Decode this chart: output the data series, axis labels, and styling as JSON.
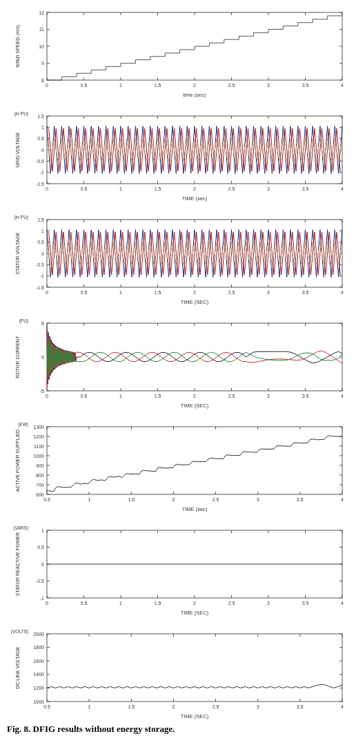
{
  "chart_data": [
    {
      "type": "step",
      "xlabel": "time  (sec)",
      "ylabel": "WIND SPEED (m/s)",
      "xlim": [
        0,
        4
      ],
      "ylim": [
        8,
        12
      ],
      "xticks": [
        0,
        0.5,
        1,
        1.5,
        2,
        2.5,
        3,
        3.5,
        4
      ],
      "yticks": [
        8,
        9,
        10,
        11,
        12
      ],
      "x": [
        0,
        0.2,
        0.4,
        0.6,
        0.8,
        1,
        1.2,
        1.4,
        1.6,
        1.8,
        2,
        2.2,
        2.4,
        2.6,
        2.8,
        3,
        3.2,
        3.4,
        3.6,
        3.8,
        4
      ],
      "series": [
        {
          "color": "#555555",
          "values": [
            8,
            8.2,
            8.4,
            8.6,
            8.8,
            9,
            9.2,
            9.4,
            9.6,
            9.8,
            10,
            10.2,
            10.4,
            10.6,
            10.8,
            11,
            11.2,
            11.4,
            11.6,
            11.8,
            11.8
          ]
        }
      ]
    },
    {
      "type": "line",
      "xlabel": "TIME  (sec)",
      "ylabel": "GRID VOLTAGE",
      "annotations": [
        "(in PU)"
      ],
      "xlim": [
        0,
        4
      ],
      "ylim": [
        -1.5,
        1.5
      ],
      "xticks": [
        0,
        0.5,
        1,
        1.5,
        2,
        2.5,
        3,
        3.5,
        4
      ],
      "yticks": [
        -1.5,
        -1,
        -0.5,
        0,
        0.5,
        1,
        1.5
      ],
      "x": [
        0,
        0.05,
        0.1,
        0.15,
        0.2,
        0.25,
        0.3,
        0.35,
        0.4,
        0.45,
        0.5,
        0.55,
        0.6,
        0.65,
        0.7,
        0.75,
        0.8,
        0.85,
        0.9,
        0.95,
        1,
        1.05,
        1.1,
        1.15,
        1.2,
        1.25,
        1.3,
        1.35,
        1.4,
        1.45,
        1.5,
        1.55,
        1.6,
        1.65,
        1.7,
        1.75,
        1.8,
        1.85,
        1.9,
        1.95,
        2,
        2.05,
        2.1,
        2.15,
        2.2,
        2.25,
        2.3,
        2.35,
        2.4,
        2.45,
        2.5,
        2.55,
        2.6,
        2.65,
        2.7,
        2.75,
        2.8,
        2.85,
        2.9,
        2.95,
        3,
        3.05,
        3.1,
        3.15,
        3.2,
        3.25,
        3.3,
        3.35,
        3.4,
        3.45,
        3.5,
        3.55,
        3.6,
        3.65,
        3.7,
        3.75,
        3.8,
        3.85,
        3.9,
        3.95,
        4
      ],
      "series": [
        {
          "color": "#2b2a7a",
          "values": [
            1.05,
            -1.05,
            1.05,
            -1.05,
            1.05,
            -1.05,
            1.05,
            -1.05,
            1.05,
            -1.05,
            1.05,
            -1.05,
            1.05,
            -1.05,
            1.05,
            -1.05,
            1.05,
            -1.05,
            1.05,
            -1.05,
            1.05,
            -1.05,
            1.05,
            -1.05,
            1.05,
            -1.05,
            1.05,
            -1.05,
            1.05,
            -1.05,
            1.05,
            -1.05,
            1.05,
            -1.05,
            1.05,
            -1.05,
            1.05,
            -1.05,
            1.05,
            -1.05,
            1.05,
            -1.05,
            1.05,
            -1.05,
            1.05,
            -1.05,
            1.05,
            -1.05,
            1.05,
            -1.05,
            1.05,
            -1.05,
            1.05,
            -1.05,
            1.05,
            -1.05,
            1.05,
            -1.05,
            1.05,
            -1.05,
            1.05,
            -1.05,
            1.05,
            -1.05,
            1.05,
            -1.05,
            1.05,
            -1.05,
            1.05,
            -1.05,
            1.05,
            -1.05,
            1.05,
            -1.05,
            1.05,
            -1.05,
            1.05,
            -1.05,
            1.05,
            -1.05,
            1.05
          ]
        },
        {
          "color": "#a51d1d",
          "x": [
            0.025,
            0.075,
            0.125,
            0.175,
            0.225,
            0.275,
            0.325,
            0.375,
            0.425,
            0.475,
            0.525,
            0.575,
            0.625,
            0.675,
            0.725,
            0.775,
            0.825,
            0.875,
            0.925,
            0.975,
            1.025,
            1.075,
            1.125,
            1.175,
            1.225,
            1.275,
            1.325,
            1.375,
            1.425,
            1.475,
            1.525,
            1.575,
            1.625,
            1.675,
            1.725,
            1.775,
            1.825,
            1.875,
            1.925,
            1.975,
            2.025,
            2.075,
            2.125,
            2.175,
            2.225,
            2.275,
            2.325,
            2.375,
            2.425,
            2.475,
            2.525,
            2.575,
            2.625,
            2.675,
            2.725,
            2.775,
            2.825,
            2.875,
            2.925,
            2.975,
            3.025,
            3.075,
            3.125,
            3.175,
            3.225,
            3.275,
            3.325,
            3.375,
            3.425,
            3.475,
            3.525,
            3.575,
            3.625,
            3.675,
            3.725,
            3.775,
            3.825,
            3.875,
            3.925,
            3.975
          ],
          "values": [
            0.95,
            -0.95,
            0.95,
            -0.95,
            0.95,
            -0.95,
            0.95,
            -0.95,
            0.95,
            -0.95,
            0.95,
            -0.95,
            0.95,
            -0.95,
            0.95,
            -0.95,
            0.95,
            -0.95,
            0.95,
            -0.95,
            0.95,
            -0.95,
            0.95,
            -0.95,
            0.95,
            -0.95,
            0.95,
            -0.95,
            0.95,
            -0.95,
            0.95,
            -0.95,
            0.95,
            -0.95,
            0.95,
            -0.95,
            0.95,
            -0.95,
            0.95,
            -0.95,
            0.95,
            -0.95,
            0.95,
            -0.95,
            0.95,
            -0.95,
            0.95,
            -0.95,
            0.95,
            -0.95,
            0.95,
            -0.95,
            0.95,
            -0.95,
            0.95,
            -0.95,
            0.95,
            -0.95,
            0.95,
            -0.95,
            0.95,
            -0.95,
            0.95,
            -0.95,
            0.95,
            -0.95,
            0.95,
            -0.95,
            0.95,
            -0.95,
            0.95,
            -0.95,
            0.95,
            -0.95,
            0.95,
            -0.95,
            0.95,
            -0.95,
            0.95,
            -0.95
          ]
        },
        {
          "color": "#d6a06a",
          "values": [
            0.5,
            -0.5,
            0.5,
            -0.5,
            0.5,
            -0.5,
            0.5,
            -0.5,
            0.5,
            -0.5,
            0.5,
            -0.5,
            0.5,
            -0.5,
            0.5,
            -0.5,
            0.5,
            -0.5,
            0.5,
            -0.5,
            0.5,
            -0.5,
            0.5,
            -0.5,
            0.5,
            -0.5,
            0.5,
            -0.5,
            0.5,
            -0.5,
            0.5,
            -0.5,
            0.5,
            -0.5,
            0.5,
            -0.5,
            0.5,
            -0.5,
            0.5,
            -0.5,
            0.5,
            -0.5,
            0.5,
            -0.5,
            0.5,
            -0.5,
            0.5,
            -0.5,
            0.5,
            -0.5,
            0.5,
            -0.5,
            0.5,
            -0.5,
            0.5,
            -0.5,
            0.5,
            -0.5,
            0.5,
            -0.5,
            0.5,
            -0.5,
            0.5,
            -0.5,
            0.5,
            -0.5,
            0.5,
            -0.5,
            0.5,
            -0.5,
            0.5,
            -0.5,
            0.5,
            -0.5,
            0.5,
            -0.5,
            0.5,
            -0.5,
            0.5,
            -0.5,
            0.5
          ]
        }
      ]
    },
    {
      "type": "line",
      "xlabel": "TIME    (SEC)",
      "ylabel": "STATOR VOLTAGE",
      "annotations": [
        "(in PU)"
      ],
      "xlim": [
        0,
        4
      ],
      "ylim": [
        -1.5,
        1.5
      ],
      "xticks": [
        0,
        0.5,
        1,
        1.5,
        2,
        2.5,
        3,
        3.5,
        4
      ],
      "yticks": [
        -1.5,
        -1,
        -0.5,
        0,
        0.5,
        1,
        1.5
      ],
      "x": [
        0,
        0.05,
        0.1,
        0.15,
        0.2,
        0.25,
        0.3,
        0.35,
        0.4,
        0.45,
        0.5,
        0.55,
        0.6,
        0.65,
        0.7,
        0.75,
        0.8,
        0.85,
        0.9,
        0.95,
        1,
        1.05,
        1.1,
        1.15,
        1.2,
        1.25,
        1.3,
        1.35,
        1.4,
        1.45,
        1.5,
        1.55,
        1.6,
        1.65,
        1.7,
        1.75,
        1.8,
        1.85,
        1.9,
        1.95,
        2,
        2.05,
        2.1,
        2.15,
        2.2,
        2.25,
        2.3,
        2.35,
        2.4,
        2.45,
        2.5,
        2.55,
        2.6,
        2.65,
        2.7,
        2.75,
        2.8,
        2.85,
        2.9,
        2.95,
        3,
        3.05,
        3.1,
        3.15,
        3.2,
        3.25,
        3.3,
        3.35,
        3.4,
        3.45,
        3.5,
        3.55,
        3.6,
        3.65,
        3.7,
        3.75,
        3.8,
        3.85,
        3.9,
        3.95,
        4
      ],
      "series": [
        {
          "color": "#2b2a7a",
          "values": [
            1.05,
            -1.05,
            1.05,
            -1.05,
            1.05,
            -1.05,
            1.05,
            -1.05,
            1.05,
            -1.05,
            1.05,
            -1.05,
            1.05,
            -1.05,
            1.05,
            -1.05,
            1.05,
            -1.05,
            1.05,
            -1.05,
            1.05,
            -1.05,
            1.05,
            -1.05,
            1.05,
            -1.05,
            1.05,
            -1.05,
            1.05,
            -1.05,
            1.05,
            -1.05,
            1.05,
            -1.05,
            1.05,
            -1.05,
            1.05,
            -1.05,
            1.05,
            -1.05,
            1.05,
            -1.05,
            1.05,
            -1.05,
            1.05,
            -1.05,
            1.05,
            -1.05,
            1.05,
            -1.05,
            1.05,
            -1.05,
            1.05,
            -1.05,
            1.05,
            -1.05,
            1.05,
            -1.05,
            1.05,
            -1.05,
            1.05,
            -1.05,
            1.05,
            -1.05,
            1.05,
            -1.05,
            1.05,
            -1.05,
            1.05,
            -1.05,
            1.05,
            -1.05,
            1.05,
            -1.05,
            1.05,
            -1.05,
            1.05,
            -1.05,
            1.05,
            -1.05,
            1.05
          ]
        },
        {
          "color": "#a51d1d",
          "x": [
            0.025,
            0.075,
            0.125,
            0.175,
            0.225,
            0.275,
            0.325,
            0.375,
            0.425,
            0.475,
            0.525,
            0.575,
            0.625,
            0.675,
            0.725,
            0.775,
            0.825,
            0.875,
            0.925,
            0.975,
            1.025,
            1.075,
            1.125,
            1.175,
            1.225,
            1.275,
            1.325,
            1.375,
            1.425,
            1.475,
            1.525,
            1.575,
            1.625,
            1.675,
            1.725,
            1.775,
            1.825,
            1.875,
            1.925,
            1.975,
            2.025,
            2.075,
            2.125,
            2.175,
            2.225,
            2.275,
            2.325,
            2.375,
            2.425,
            2.475,
            2.525,
            2.575,
            2.625,
            2.675,
            2.725,
            2.775,
            2.825,
            2.875,
            2.925,
            2.975,
            3.025,
            3.075,
            3.125,
            3.175,
            3.225,
            3.275,
            3.325,
            3.375,
            3.425,
            3.475,
            3.525,
            3.575,
            3.625,
            3.675,
            3.725,
            3.775,
            3.825,
            3.875,
            3.925,
            3.975
          ],
          "values": [
            0.95,
            -0.95,
            0.95,
            -0.95,
            0.95,
            -0.95,
            0.95,
            -0.95,
            0.95,
            -0.95,
            0.95,
            -0.95,
            0.95,
            -0.95,
            0.95,
            -0.95,
            0.95,
            -0.95,
            0.95,
            -0.95,
            0.95,
            -0.95,
            0.95,
            -0.95,
            0.95,
            -0.95,
            0.95,
            -0.95,
            0.95,
            -0.95,
            0.95,
            -0.95,
            0.95,
            -0.95,
            0.95,
            -0.95,
            0.95,
            -0.95,
            0.95,
            -0.95,
            0.95,
            -0.95,
            0.95,
            -0.95,
            0.95,
            -0.95,
            0.95,
            -0.95,
            0.95,
            -0.95,
            0.95,
            -0.95,
            0.95,
            -0.95,
            0.95,
            -0.95,
            0.95,
            -0.95,
            0.95,
            -0.95,
            0.95,
            -0.95,
            0.95,
            -0.95,
            0.95,
            -0.95,
            0.95,
            -0.95,
            0.95,
            -0.95,
            0.95,
            -0.95,
            0.95,
            -0.95,
            0.95,
            -0.95,
            0.95,
            -0.95,
            0.95,
            -0.95
          ]
        },
        {
          "color": "#d6a06a",
          "values": [
            0.5,
            -0.5,
            0.5,
            -0.5,
            0.5,
            -0.5,
            0.5,
            -0.5,
            0.5,
            -0.5,
            0.5,
            -0.5,
            0.5,
            -0.5,
            0.5,
            -0.5,
            0.5,
            -0.5,
            0.5,
            -0.5,
            0.5,
            -0.5,
            0.5,
            -0.5,
            0.5,
            -0.5,
            0.5,
            -0.5,
            0.5,
            -0.5,
            0.5,
            -0.5,
            0.5,
            -0.5,
            0.5,
            -0.5,
            0.5,
            -0.5,
            0.5,
            -0.5,
            0.5,
            -0.5,
            0.5,
            -0.5,
            0.5,
            -0.5,
            0.5,
            -0.5,
            0.5,
            -0.5,
            0.5,
            -0.5,
            0.5,
            -0.5,
            0.5,
            -0.5,
            0.5,
            -0.5,
            0.5,
            -0.5,
            0.5,
            -0.5,
            0.5,
            -0.5,
            0.5,
            -0.5,
            0.5,
            -0.5,
            0.5,
            -0.5,
            0.5,
            -0.5,
            0.5,
            -0.5,
            0.5,
            -0.5,
            0.5,
            -0.5,
            0.5,
            -0.5,
            0.5
          ]
        }
      ]
    },
    {
      "type": "line",
      "xlabel": "TIME  (SEC)",
      "ylabel": "ROTOR CURRENT",
      "annotations": [
        "(PU)"
      ],
      "xlim": [
        0,
        4
      ],
      "ylim": [
        -5,
        5
      ],
      "xticks": [
        0,
        0.5,
        1,
        1.5,
        2,
        2.5,
        3,
        3.5,
        4
      ],
      "yticks": [
        -5,
        0,
        5
      ],
      "x": [
        0,
        0.01,
        0.02,
        0.03,
        0.04,
        0.05,
        0.06,
        0.07,
        0.08,
        0.09,
        0.1,
        0.11,
        0.12,
        0.13,
        0.14,
        0.15,
        0.16,
        0.17,
        0.18,
        0.19,
        0.2,
        0.21,
        0.22,
        0.23,
        0.24,
        0.25,
        0.26,
        0.27,
        0.28,
        0.29,
        0.3,
        0.31,
        0.32,
        0.33,
        0.34,
        0.35,
        0.36,
        0.37,
        0.38,
        0.39,
        0.4,
        0.45,
        0.5,
        0.55,
        0.6,
        0.65,
        0.7,
        0.75,
        0.8,
        0.85,
        0.9,
        0.95,
        1,
        1.05,
        1.1,
        1.15,
        1.2,
        1.25,
        1.3,
        1.35,
        1.4,
        1.45,
        1.5,
        1.55,
        1.6,
        1.65,
        1.7,
        1.75,
        1.8,
        1.85,
        1.9,
        1.95,
        2,
        2.05,
        2.1,
        2.15,
        2.2,
        2.25,
        2.3,
        2.35,
        2.4,
        2.45,
        2.5,
        2.55,
        2.6,
        2.65,
        2.7,
        2.75,
        2.8,
        2.85,
        2.9,
        2.95,
        3,
        3.05,
        3.1,
        3.15,
        3.2,
        3.25,
        3.3,
        3.35,
        3.4,
        3.45,
        3.5,
        3.55,
        3.6,
        3.65,
        3.7,
        3.75,
        3.8,
        3.85,
        3.9,
        3.95,
        4
      ],
      "series": [
        {
          "color": "#1f1f3a",
          "values": [
            4.5,
            -4,
            3.6,
            -3.3,
            3,
            -2.7,
            2.5,
            -2.3,
            2.1,
            -2,
            1.9,
            -1.8,
            1.7,
            -1.6,
            1.5,
            -1.4,
            1.4,
            -1.3,
            1.3,
            -1.2,
            1.2,
            -1.1,
            1.1,
            -1.1,
            1,
            -1,
            1,
            -0.9,
            0.9,
            -0.9,
            0.9,
            -0.8,
            0.8,
            -0.8,
            0.8,
            -0.8,
            0.7,
            -0.7,
            0.7,
            -0.7,
            0,
            0,
            0.41,
            0.67,
            0.67,
            0.41,
            0,
            -0.41,
            -0.67,
            -0.67,
            -0.41,
            0,
            0.41,
            0.67,
            0.67,
            0.41,
            0,
            -0.41,
            -0.67,
            -0.67,
            -0.41,
            0,
            0.41,
            0.67,
            0.67,
            0.41,
            0,
            -0.41,
            -0.67,
            -0.67,
            -0.41,
            0,
            0.41,
            0.67,
            0.67,
            0.41,
            0,
            -0.41,
            -0.67,
            -0.67,
            -0.41,
            0,
            0.41,
            0.67,
            0.67,
            0.41,
            0,
            0.4,
            0.7,
            0.8,
            0.8,
            0.8,
            0.8,
            0.8,
            0.8,
            0.8,
            0.8,
            0.8,
            0.7,
            0.5,
            0.2,
            -0.1,
            -0.4,
            -0.7,
            -0.9,
            -0.8,
            -0.6,
            -0.3,
            0,
            0.3,
            0.6,
            0.8,
            0.5
          ]
        },
        {
          "color": "#c0303a",
          "values": [
            -4.5,
            3.8,
            -3.4,
            3.1,
            -2.8,
            2.6,
            -2.4,
            2.2,
            -2,
            1.9,
            -1.8,
            1.7,
            -1.6,
            1.5,
            -1.4,
            1.4,
            -1.3,
            1.3,
            -1.2,
            1.2,
            -1.1,
            1.1,
            -1,
            1,
            -1,
            0.9,
            -0.9,
            0.9,
            -0.8,
            0.8,
            -0.8,
            0.8,
            -0.7,
            0.7,
            -0.7,
            0.7,
            -0.6,
            0.6,
            -0.5,
            0.6,
            0.7,
            0.67,
            0.41,
            0,
            -0.41,
            -0.67,
            -0.67,
            -0.41,
            0,
            0.41,
            0.67,
            0.67,
            0.41,
            0,
            -0.41,
            -0.67,
            -0.67,
            -0.41,
            0,
            0.41,
            0.67,
            0.67,
            0.41,
            0,
            -0.41,
            -0.67,
            -0.67,
            -0.41,
            0,
            0.41,
            0.67,
            0.67,
            0.41,
            0,
            -0.41,
            -0.67,
            -0.67,
            -0.41,
            0,
            0.41,
            0.67,
            0.67,
            0.41,
            0,
            -0.41,
            -0.67,
            -0.67,
            -0.8,
            -0.8,
            -0.7,
            -0.6,
            -0.5,
            -0.4,
            -0.35,
            -0.3,
            -0.3,
            -0.3,
            -0.35,
            -0.4,
            -0.45,
            -0.5,
            -0.4,
            -0.2,
            0.1,
            0.4,
            0.7,
            0.9,
            0.8,
            0.5,
            0.2,
            -0.2,
            -0.6,
            -0.9
          ]
        },
        {
          "color": "#2a8a3a",
          "values": [
            2,
            -3,
            2.8,
            -2.6,
            2.4,
            -2.2,
            2,
            -1.9,
            1.8,
            -1.7,
            1.6,
            -1.5,
            1.4,
            -1.3,
            1.3,
            -1.2,
            1.2,
            -1.1,
            1.1,
            -1,
            1,
            -1,
            0.9,
            -0.9,
            0.9,
            -0.9,
            0.8,
            -0.8,
            0.8,
            -0.8,
            0.7,
            -0.7,
            0.7,
            -0.7,
            0.6,
            -0.6,
            0.5,
            -0.6,
            -0.6,
            -0.6,
            -0.65,
            -0.67,
            -0.67,
            -0.41,
            0,
            0.41,
            0.67,
            0.67,
            0.41,
            0,
            -0.41,
            -0.67,
            -0.67,
            -0.41,
            0,
            0.41,
            0.67,
            0.67,
            0.41,
            0,
            -0.41,
            -0.67,
            -0.67,
            -0.41,
            0,
            0.41,
            0.67,
            0.67,
            0.41,
            0,
            -0.41,
            -0.67,
            -0.67,
            -0.41,
            0,
            0.41,
            0.67,
            0.67,
            0.41,
            0,
            -0.41,
            -0.67,
            -0.67,
            -0.41,
            0,
            0.41,
            0.67,
            0.4,
            0.1,
            -0.1,
            -0.2,
            -0.3,
            -0.4,
            -0.45,
            -0.5,
            -0.5,
            -0.5,
            -0.45,
            -0.3,
            -0.05,
            0.3,
            0.5,
            0.6,
            0.6,
            0.5,
            0.1,
            -0.3,
            -0.5,
            -0.5,
            -0.5,
            -0.4,
            -0.2,
            0.4
          ]
        }
      ]
    },
    {
      "type": "line",
      "xlabel": "TIME (sec)",
      "ylabel": "ACTIVE POWER SUPPLIED",
      "annotations": [
        "(KW)"
      ],
      "xlim": [
        0.5,
        4
      ],
      "ylim": [
        600,
        1300
      ],
      "xticks": [
        0.5,
        1,
        1.5,
        2,
        2.5,
        3,
        3.5,
        4
      ],
      "yticks": [
        600,
        700,
        800,
        900,
        1000,
        1100,
        1200,
        1300
      ],
      "x": [
        0.5,
        0.58,
        0.6,
        0.63,
        0.7,
        0.79,
        0.82,
        0.85,
        0.9,
        0.95,
        0.99,
        1.02,
        1.05,
        1.1,
        1.15,
        1.19,
        1.22,
        1.25,
        1.3,
        1.35,
        1.39,
        1.42,
        1.45,
        1.5,
        1.55,
        1.59,
        1.62,
        1.65,
        1.7,
        1.79,
        1.82,
        1.85,
        1.9,
        1.99,
        2.02,
        2.05,
        2.1,
        2.19,
        2.22,
        2.25,
        2.3,
        2.39,
        2.42,
        2.45,
        2.5,
        2.59,
        2.62,
        2.65,
        2.7,
        2.79,
        2.82,
        2.85,
        2.9,
        2.99,
        3.02,
        3.05,
        3.1,
        3.19,
        3.22,
        3.25,
        3.3,
        3.39,
        3.42,
        3.45,
        3.5,
        3.59,
        3.62,
        3.65,
        3.7,
        3.79,
        3.82,
        3.85,
        3.9,
        4
      ],
      "series": [
        {
          "color": "#333333",
          "values": [
            640,
            630,
            665,
            680,
            672,
            675,
            705,
            720,
            705,
            715,
            708,
            740,
            755,
            745,
            750,
            742,
            775,
            785,
            778,
            788,
            775,
            805,
            815,
            808,
            812,
            805,
            840,
            848,
            843,
            838,
            880,
            875,
            872,
            875,
            905,
            912,
            905,
            908,
            938,
            942,
            938,
            940,
            970,
            975,
            970,
            968,
            1005,
            1008,
            1002,
            1005,
            1038,
            1042,
            1038,
            1035,
            1065,
            1070,
            1068,
            1070,
            1098,
            1105,
            1100,
            1098,
            1130,
            1135,
            1130,
            1132,
            1168,
            1172,
            1165,
            1170,
            1200,
            1208,
            1200,
            1198
          ]
        }
      ]
    },
    {
      "type": "line",
      "xlabel": "TIME (SEC)",
      "ylabel": "STATOR REACTIVE POWER",
      "annotations": [
        "(VARS)"
      ],
      "xlim": [
        0,
        4
      ],
      "ylim": [
        -1,
        1
      ],
      "xticks": [
        0,
        0.5,
        1,
        1.5,
        2,
        2.5,
        3,
        3.5,
        4
      ],
      "yticks": [
        -1,
        -0.5,
        0,
        0.5,
        1
      ],
      "x": [
        0,
        4
      ],
      "series": [
        {
          "color": "#333333",
          "values": [
            0,
            0
          ]
        }
      ]
    },
    {
      "type": "line",
      "xlabel": "TIME (SEC)",
      "ylabel": "DC LINK VOLTAGE",
      "annotations": [
        "(VOLTS)",
        "Fig. 8.    DFIG  results without energy storage."
      ],
      "xlim": [
        0.5,
        4
      ],
      "ylim": [
        1000,
        2000
      ],
      "xticks": [
        0.5,
        1,
        1.5,
        2,
        2.5,
        3,
        3.5,
        4
      ],
      "yticks": [
        1000,
        1200,
        1400,
        1600,
        1800,
        2000
      ],
      "x": [
        0.5,
        0.55,
        0.6,
        0.65,
        0.7,
        0.75,
        0.8,
        0.85,
        0.9,
        0.95,
        1,
        1.05,
        1.1,
        1.15,
        1.2,
        1.25,
        1.3,
        1.35,
        1.4,
        1.45,
        1.5,
        1.55,
        1.6,
        1.65,
        1.7,
        1.75,
        1.8,
        1.85,
        1.9,
        1.95,
        2,
        2.05,
        2.1,
        2.15,
        2.2,
        2.25,
        2.3,
        2.35,
        2.4,
        2.45,
        2.5,
        2.55,
        2.6,
        2.65,
        2.7,
        2.75,
        2.8,
        2.85,
        2.9,
        2.95,
        3,
        3.05,
        3.1,
        3.15,
        3.2,
        3.25,
        3.3,
        3.35,
        3.4,
        3.45,
        3.5,
        3.55,
        3.6,
        3.65,
        3.7,
        3.75,
        3.8,
        3.85,
        3.9,
        3.95,
        4
      ],
      "series": [
        {
          "color": "#333333",
          "values": [
            1200,
            1220,
            1200,
            1220,
            1200,
            1220,
            1200,
            1220,
            1200,
            1220,
            1200,
            1220,
            1200,
            1220,
            1200,
            1220,
            1200,
            1220,
            1200,
            1220,
            1200,
            1220,
            1200,
            1220,
            1200,
            1220,
            1200,
            1220,
            1200,
            1220,
            1200,
            1220,
            1200,
            1220,
            1200,
            1220,
            1200,
            1220,
            1200,
            1220,
            1200,
            1220,
            1200,
            1220,
            1200,
            1220,
            1200,
            1220,
            1200,
            1220,
            1200,
            1220,
            1200,
            1220,
            1200,
            1220,
            1200,
            1220,
            1200,
            1220,
            1200,
            1220,
            1200,
            1220,
            1240,
            1250,
            1245,
            1220,
            1200,
            1220,
            1245
          ]
        }
      ]
    }
  ]
}
